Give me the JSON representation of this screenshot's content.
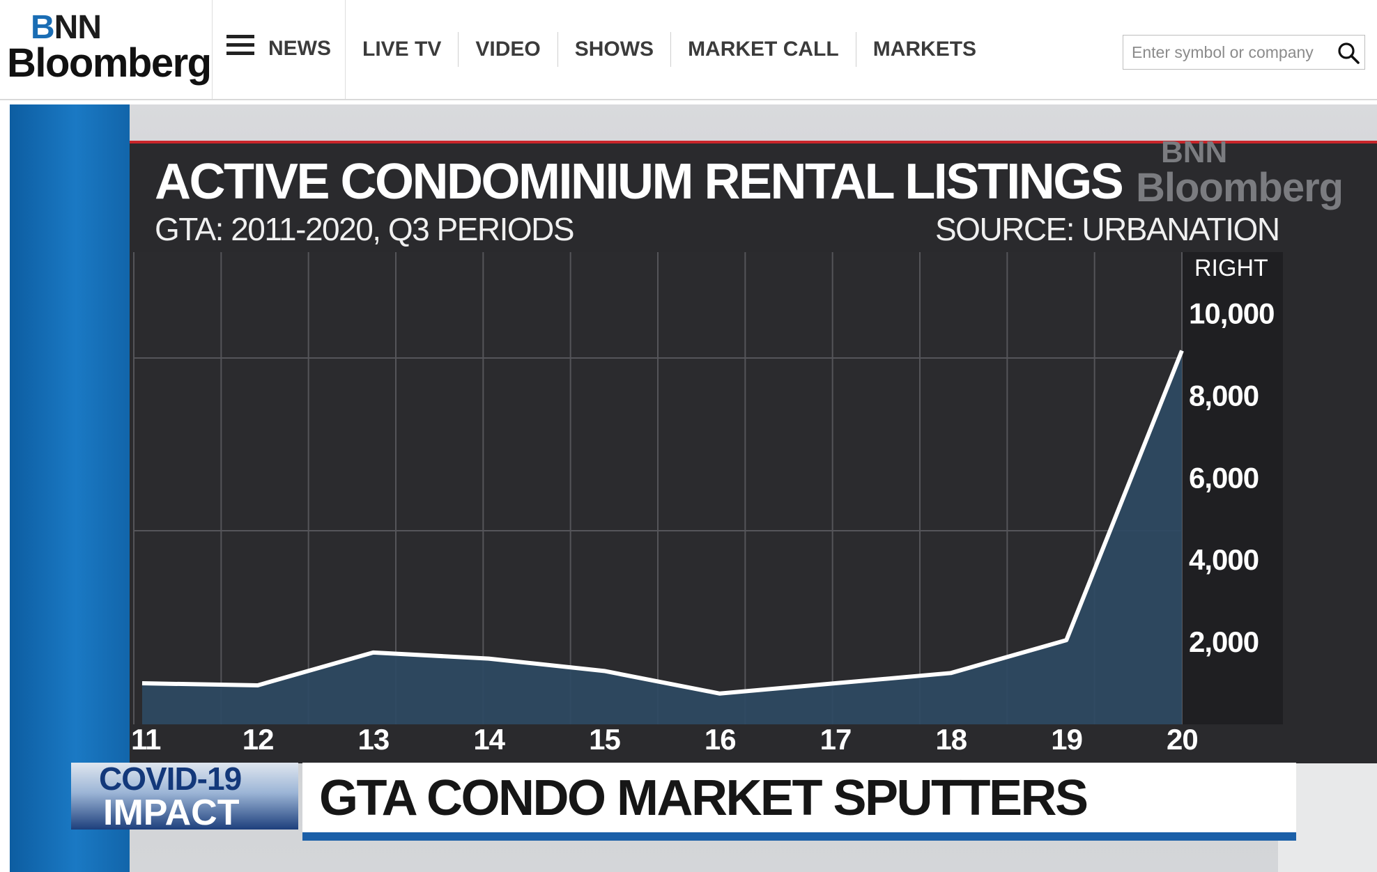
{
  "header": {
    "logo": {
      "line1": "BNN",
      "line2": "Bloomberg"
    },
    "menu_label": "NEWS",
    "nav": [
      "LIVE TV",
      "VIDEO",
      "SHOWS",
      "MARKET CALL",
      "MARKETS"
    ],
    "search_placeholder": "Enter symbol or company"
  },
  "video": {
    "watermark": {
      "line1": "BNN",
      "line2": "Bloomberg"
    },
    "lower_third": {
      "tag_line1": "COVID-19",
      "tag_line2": "IMPACT",
      "headline": "GTA CONDO MARKET SPUTTERS"
    },
    "colors": {
      "accent_red": "#c9252a",
      "brand_blue": "#1b5fa8",
      "series_line": "#ffffff",
      "series_fill": "#2e4a63"
    }
  },
  "chart_data": {
    "type": "area",
    "title": "ACTIVE CONDOMINIUM RENTAL LISTINGS",
    "subtitle": "GTA: 2011-2020, Q3 PERIODS",
    "source": "SOURCE: URBANATION",
    "axis_label": "RIGHT",
    "x": [
      "11",
      "12",
      "13",
      "14",
      "15",
      "16",
      "17",
      "18",
      "19",
      "20"
    ],
    "values": [
      1000,
      950,
      1750,
      1600,
      1300,
      750,
      1000,
      1250,
      2050,
      9100
    ],
    "ylim": [
      0,
      11500
    ],
    "y_ticks": [
      "2,000",
      "4,000",
      "6,000",
      "8,000",
      "10,000"
    ],
    "grid": true,
    "legend": "none"
  }
}
